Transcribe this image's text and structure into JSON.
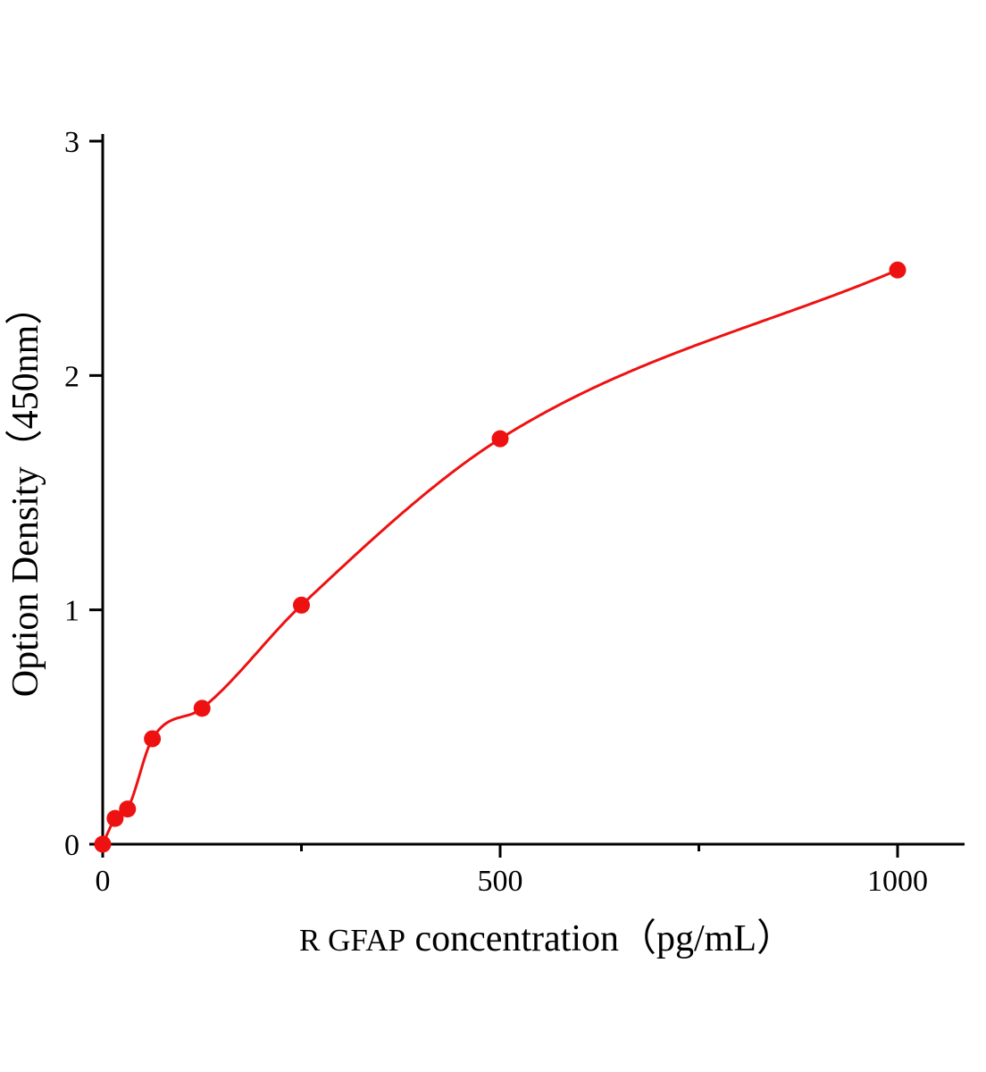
{
  "chart_data": {
    "type": "scatter",
    "description": "ELISA standard curve: red data points with smooth red fitted curve, black L-shaped axes, serif labels",
    "xlabel_prefix": "R GFAP",
    "xlabel_rest": " concentration（pg/mL）",
    "xlabel_full": "R GFAP concentration（pg/mL）",
    "ylabel": "Option Density（450nm）",
    "x": [
      0,
      15.6,
      31.2,
      62.5,
      125,
      250,
      500,
      1000
    ],
    "y": [
      0.0,
      0.11,
      0.15,
      0.45,
      0.58,
      1.02,
      1.73,
      2.45
    ],
    "xlim": [
      0,
      1000
    ],
    "ylim": [
      0,
      3
    ],
    "x_ticks": [
      {
        "value": 0,
        "label": "0"
      },
      {
        "value": 500,
        "label": "500"
      },
      {
        "value": 1000,
        "label": "1000"
      }
    ],
    "x_minor_ticks": [
      250,
      750
    ],
    "y_ticks": [
      {
        "value": 0,
        "label": "0"
      },
      {
        "value": 1,
        "label": "1"
      },
      {
        "value": 2,
        "label": "2"
      },
      {
        "value": 3,
        "label": "3"
      }
    ],
    "grid": "off",
    "legend": "none",
    "colors": {
      "series": "#ee1111",
      "axis": "#000000",
      "background": "#ffffff"
    },
    "marker_radius": 9.5,
    "line_width": 3
  }
}
